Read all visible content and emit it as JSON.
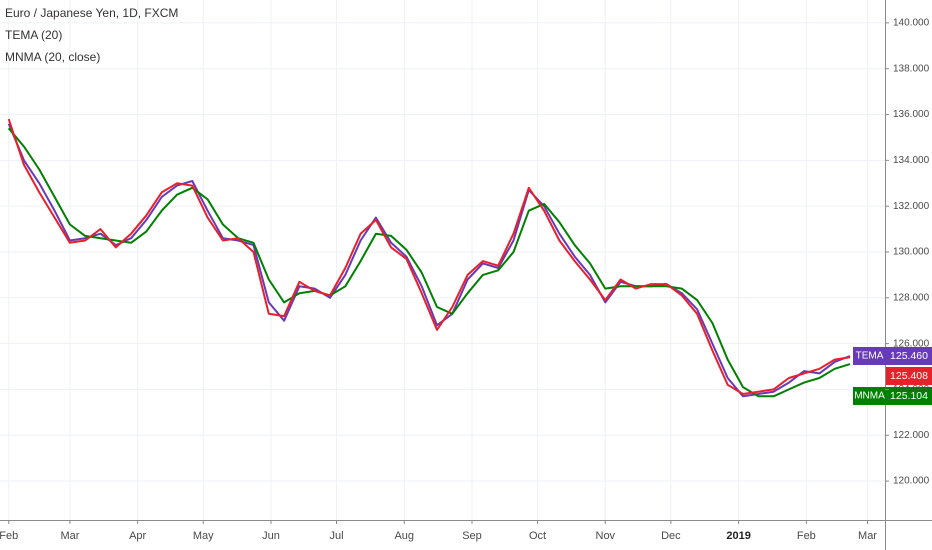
{
  "chart_data": {
    "type": "line",
    "title": "Euro / Japanese Yen, 1D, FXCM",
    "x": [
      0,
      7,
      14,
      21,
      28,
      35,
      42,
      49,
      56,
      63,
      70,
      77,
      84,
      91,
      98,
      105,
      112,
      119,
      126,
      133,
      140,
      147,
      154,
      161,
      168,
      175,
      182,
      189,
      196,
      203,
      210,
      217,
      224,
      231,
      238,
      245,
      252,
      259,
      266,
      273,
      280,
      287,
      294,
      301,
      308,
      315,
      322,
      329,
      336,
      343,
      350,
      357,
      364,
      371,
      378,
      385
    ],
    "xlim": [
      -4,
      401
    ],
    "xticks": [
      {
        "value": 0,
        "label": "Feb"
      },
      {
        "value": 28,
        "label": "Mar"
      },
      {
        "value": 59,
        "label": "Apr"
      },
      {
        "value": 89,
        "label": "May"
      },
      {
        "value": 120,
        "label": "Jun"
      },
      {
        "value": 150,
        "label": "Jul"
      },
      {
        "value": 181,
        "label": "Aug"
      },
      {
        "value": 212,
        "label": "Sep"
      },
      {
        "value": 242,
        "label": "Oct"
      },
      {
        "value": 273,
        "label": "Nov"
      },
      {
        "value": 303,
        "label": "Dec"
      },
      {
        "value": 334,
        "label": "2019"
      },
      {
        "value": 365,
        "label": "Feb"
      },
      {
        "value": 393,
        "label": "Mar"
      }
    ],
    "ylim": [
      118.3,
      141.0
    ],
    "yticks": [
      {
        "value": 120,
        "label": "120.000"
      },
      {
        "value": 122,
        "label": "122.000"
      },
      {
        "value": 124,
        "label": "124.000"
      },
      {
        "value": 126,
        "label": "126.000"
      },
      {
        "value": 128,
        "label": "128.000"
      },
      {
        "value": 130,
        "label": "130.000"
      },
      {
        "value": 132,
        "label": "132.000"
      },
      {
        "value": 134,
        "label": "134.000"
      },
      {
        "value": 136,
        "label": "136.000"
      },
      {
        "value": 138,
        "label": "138.000"
      },
      {
        "value": 140,
        "label": "140.000"
      }
    ],
    "grid": true,
    "series": [
      {
        "name": "TEMA (20)",
        "tag": "TEMA",
        "color": "#673ab7",
        "values": [
          135.6,
          134.0,
          133.0,
          131.8,
          130.5,
          130.6,
          130.8,
          130.3,
          130.6,
          131.4,
          132.4,
          132.9,
          133.1,
          131.8,
          130.6,
          130.5,
          130.3,
          127.8,
          127.0,
          128.5,
          128.4,
          128.0,
          129.0,
          130.5,
          131.5,
          130.4,
          129.8,
          128.5,
          126.8,
          127.3,
          128.8,
          129.5,
          129.3,
          130.5,
          132.7,
          132.0,
          130.8,
          129.8,
          129.0,
          127.8,
          128.7,
          128.5,
          128.5,
          128.6,
          128.2,
          127.5,
          126.0,
          124.5,
          123.7,
          123.8,
          123.9,
          124.3,
          124.8,
          124.7,
          125.2,
          125.46
        ],
        "last": {
          "value": 125.46,
          "label": "125.460"
        }
      },
      {
        "name": "MNMA (20, close)",
        "tag": "MNMA",
        "color": "#008000",
        "values": [
          135.4,
          134.6,
          133.6,
          132.4,
          131.2,
          130.7,
          130.6,
          130.5,
          130.4,
          130.9,
          131.8,
          132.5,
          132.8,
          132.3,
          131.2,
          130.6,
          130.4,
          128.8,
          127.8,
          128.2,
          128.3,
          128.1,
          128.5,
          129.6,
          130.8,
          130.7,
          130.1,
          129.1,
          127.6,
          127.3,
          128.2,
          129.0,
          129.2,
          130.0,
          131.8,
          132.1,
          131.3,
          130.3,
          129.5,
          128.4,
          128.5,
          128.5,
          128.5,
          128.5,
          128.4,
          127.9,
          126.9,
          125.3,
          124.1,
          123.7,
          123.7,
          124.0,
          124.3,
          124.5,
          124.9,
          125.104
        ],
        "last": {
          "value": 125.104,
          "label": "125.104"
        }
      }
    ],
    "price": {
      "color": "#e8202a",
      "values": [
        135.8,
        133.8,
        132.6,
        131.5,
        130.4,
        130.5,
        131.0,
        130.2,
        130.8,
        131.6,
        132.6,
        133.0,
        132.9,
        131.5,
        130.5,
        130.6,
        130.0,
        127.3,
        127.2,
        128.7,
        128.3,
        128.1,
        129.3,
        130.8,
        131.4,
        130.2,
        129.7,
        128.2,
        126.6,
        127.6,
        129.0,
        129.6,
        129.4,
        130.8,
        132.8,
        131.8,
        130.5,
        129.6,
        128.8,
        127.9,
        128.8,
        128.4,
        128.6,
        128.6,
        128.1,
        127.3,
        125.7,
        124.2,
        123.8,
        123.9,
        124.0,
        124.5,
        124.7,
        124.9,
        125.3,
        125.408
      ],
      "last": {
        "value": 125.408,
        "label": "125.408"
      }
    }
  }
}
